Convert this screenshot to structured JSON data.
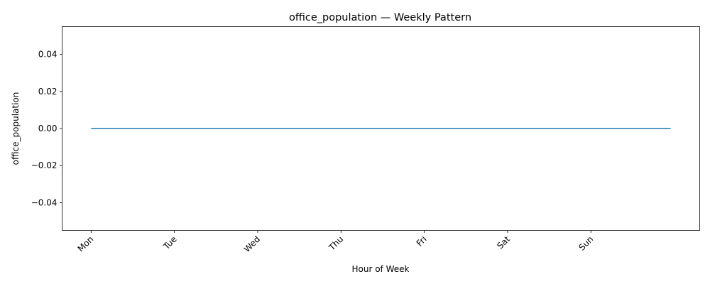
{
  "chart_data": {
    "type": "line",
    "title": "office_population — Weekly Pattern",
    "xlabel": "Hour of Week",
    "ylabel": "office_population",
    "x_tick_labels": [
      "Mon",
      "Tue",
      "Wed",
      "Thu",
      "Fri",
      "Sat",
      "Sun"
    ],
    "x_tick_values": [
      0,
      24,
      48,
      72,
      96,
      120,
      144
    ],
    "y_tick_labels": [
      "−0.04",
      "−0.02",
      "0.00",
      "0.02",
      "0.04"
    ],
    "y_tick_values": [
      -0.04,
      -0.02,
      0.0,
      0.02,
      0.04
    ],
    "xlim": [
      -8.35,
      175.35
    ],
    "ylim": [
      -0.055,
      0.055
    ],
    "grid": false,
    "series": [
      {
        "color": "#1f77b4",
        "x": [
          0,
          167
        ],
        "y": [
          0,
          0
        ]
      }
    ]
  }
}
